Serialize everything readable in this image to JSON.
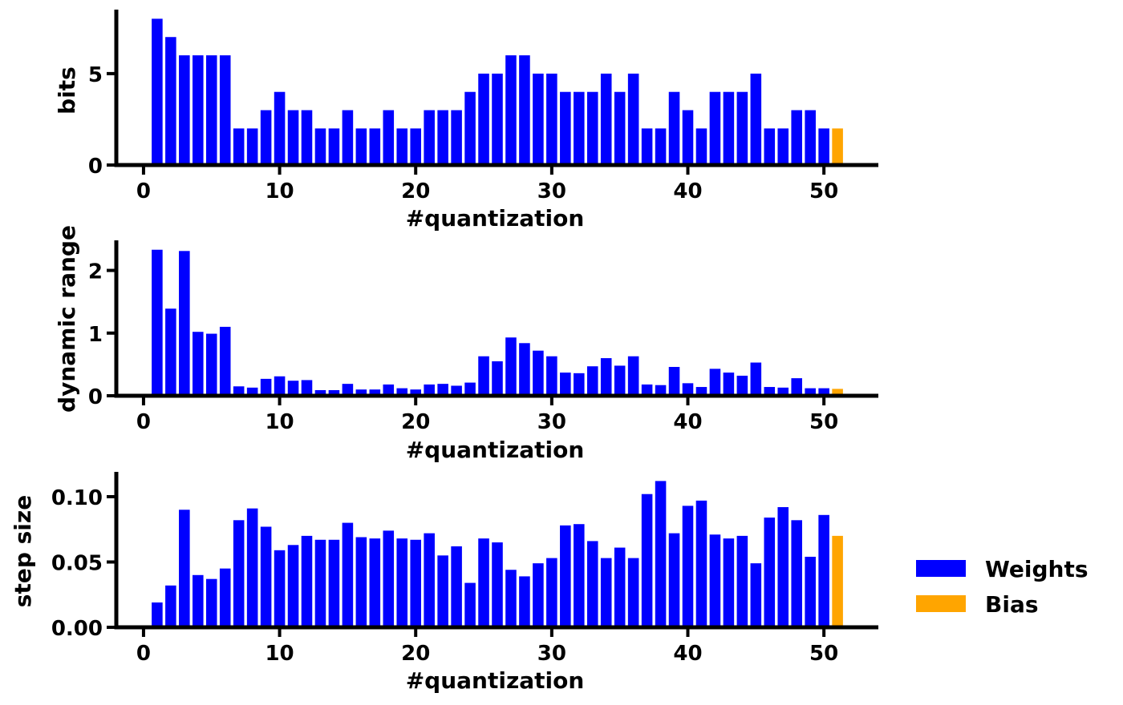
{
  "colors": {
    "weights": "#0000ff",
    "bias": "#ffa500",
    "axis": "#000000",
    "background": "#ffffff"
  },
  "legend": {
    "placement": "right",
    "items": [
      {
        "label": "Weights",
        "color": "#0000ff"
      },
      {
        "label": "Bias",
        "color": "#ffa500"
      }
    ]
  },
  "chart_data": [
    {
      "type": "bar",
      "xlabel": "#quantization",
      "ylabel": "bits",
      "xlim": [
        -2,
        54
      ],
      "ylim": [
        0,
        8.5
      ],
      "xticks": [
        0,
        10,
        20,
        30,
        40,
        50
      ],
      "xtick_labels": [
        "0",
        "10",
        "20",
        "30",
        "40",
        "50"
      ],
      "yticks": [
        0,
        5
      ],
      "ytick_labels": [
        "0",
        "5"
      ],
      "grid": false,
      "series": [
        {
          "name": "Weights",
          "color": "#0000ff",
          "x": [
            1,
            2,
            3,
            4,
            5,
            6,
            7,
            8,
            9,
            10,
            11,
            12,
            13,
            14,
            15,
            16,
            17,
            18,
            19,
            20,
            21,
            22,
            23,
            24,
            25,
            26,
            27,
            28,
            29,
            30,
            31,
            32,
            33,
            34,
            35,
            36,
            37,
            38,
            39,
            40,
            41,
            42,
            43,
            44,
            45,
            46,
            47,
            48,
            49,
            50
          ],
          "values": [
            8,
            7,
            6,
            6,
            6,
            6,
            2,
            2,
            3,
            4,
            3,
            3,
            2,
            2,
            3,
            2,
            2,
            3,
            2,
            2,
            3,
            3,
            3,
            4,
            5,
            5,
            6,
            6,
            5,
            5,
            4,
            4,
            4,
            5,
            4,
            5,
            2,
            2,
            4,
            3,
            2,
            4,
            4,
            4,
            5,
            2,
            2,
            3,
            3,
            2
          ]
        },
        {
          "name": "Bias",
          "color": "#ffa500",
          "x": [
            51
          ],
          "values": [
            2
          ]
        }
      ]
    },
    {
      "type": "bar",
      "xlabel": "#quantization",
      "ylabel": "dynamic range",
      "xlim": [
        -2,
        54
      ],
      "ylim": [
        0,
        2.48
      ],
      "xticks": [
        0,
        10,
        20,
        30,
        40,
        50
      ],
      "xtick_labels": [
        "0",
        "10",
        "20",
        "30",
        "40",
        "50"
      ],
      "yticks": [
        0,
        1,
        2
      ],
      "ytick_labels": [
        "0",
        "1",
        "2"
      ],
      "grid": false,
      "series": [
        {
          "name": "Weights",
          "color": "#0000ff",
          "x": [
            1,
            2,
            3,
            4,
            5,
            6,
            7,
            8,
            9,
            10,
            11,
            12,
            13,
            14,
            15,
            16,
            17,
            18,
            19,
            20,
            21,
            22,
            23,
            24,
            25,
            26,
            27,
            28,
            29,
            30,
            31,
            32,
            33,
            34,
            35,
            36,
            37,
            38,
            39,
            40,
            41,
            42,
            43,
            44,
            45,
            46,
            47,
            48,
            49,
            50
          ],
          "values": [
            2.33,
            1.39,
            2.31,
            1.02,
            0.99,
            1.1,
            0.15,
            0.13,
            0.27,
            0.31,
            0.24,
            0.25,
            0.09,
            0.09,
            0.19,
            0.1,
            0.1,
            0.18,
            0.12,
            0.1,
            0.18,
            0.19,
            0.16,
            0.21,
            0.63,
            0.55,
            0.93,
            0.84,
            0.72,
            0.63,
            0.37,
            0.36,
            0.47,
            0.6,
            0.48,
            0.63,
            0.18,
            0.17,
            0.46,
            0.2,
            0.14,
            0.43,
            0.37,
            0.32,
            0.53,
            0.14,
            0.13,
            0.28,
            0.12,
            0.12
          ]
        },
        {
          "name": "Bias",
          "color": "#ffa500",
          "x": [
            51
          ],
          "values": [
            0.11
          ]
        }
      ]
    },
    {
      "type": "bar",
      "xlabel": "#quantization",
      "ylabel": "step size",
      "xlim": [
        -2,
        54
      ],
      "ylim": [
        0,
        0.119
      ],
      "xticks": [
        0,
        10,
        20,
        30,
        40,
        50
      ],
      "xtick_labels": [
        "0",
        "10",
        "20",
        "30",
        "40",
        "50"
      ],
      "yticks": [
        0,
        0.05,
        0.1
      ],
      "ytick_labels": [
        "0.00",
        "0.05",
        "0.10"
      ],
      "grid": false,
      "series": [
        {
          "name": "Weights",
          "color": "#0000ff",
          "x": [
            1,
            2,
            3,
            4,
            5,
            6,
            7,
            8,
            9,
            10,
            11,
            12,
            13,
            14,
            15,
            16,
            17,
            18,
            19,
            20,
            21,
            22,
            23,
            24,
            25,
            26,
            27,
            28,
            29,
            30,
            31,
            32,
            33,
            34,
            35,
            36,
            37,
            38,
            39,
            40,
            41,
            42,
            43,
            44,
            45,
            46,
            47,
            48,
            49,
            50
          ],
          "values": [
            0.019,
            0.032,
            0.09,
            0.04,
            0.037,
            0.045,
            0.082,
            0.091,
            0.077,
            0.059,
            0.063,
            0.07,
            0.067,
            0.067,
            0.08,
            0.069,
            0.068,
            0.074,
            0.068,
            0.067,
            0.072,
            0.055,
            0.062,
            0.034,
            0.068,
            0.065,
            0.044,
            0.039,
            0.049,
            0.053,
            0.078,
            0.079,
            0.066,
            0.053,
            0.061,
            0.053,
            0.102,
            0.112,
            0.072,
            0.093,
            0.097,
            0.071,
            0.068,
            0.07,
            0.049,
            0.084,
            0.092,
            0.082,
            0.054,
            0.086
          ]
        },
        {
          "name": "Bias",
          "color": "#ffa500",
          "x": [
            51
          ],
          "values": [
            0.07
          ]
        }
      ]
    }
  ]
}
